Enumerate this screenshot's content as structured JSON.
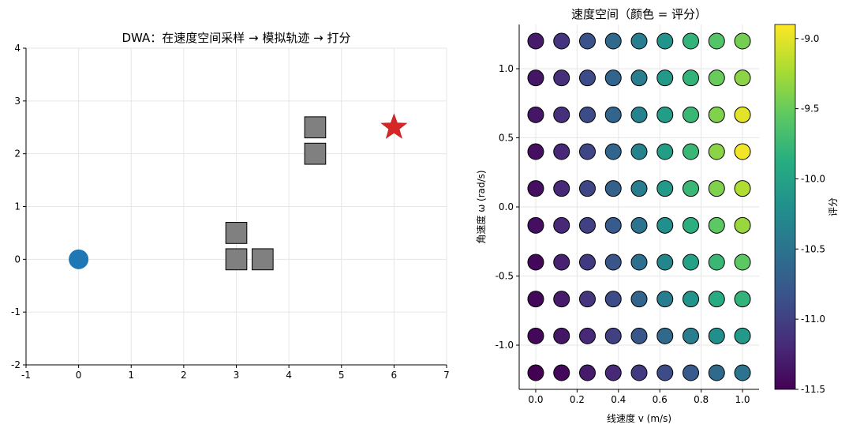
{
  "chart_data": [
    {
      "type": "scatter",
      "title": "DWA：在速度空间采样 → 模拟轨迹 → 打分",
      "xlabel": "",
      "ylabel": "",
      "xlim": [
        -1,
        7
      ],
      "ylim": [
        -2,
        4
      ],
      "xticks": [
        "-1",
        "0",
        "1",
        "2",
        "3",
        "4",
        "5",
        "6",
        "7"
      ],
      "yticks": [
        "-2",
        "-1",
        "0",
        "1",
        "2",
        "3",
        "4"
      ],
      "grid": true,
      "robot": {
        "x": 0,
        "y": 0,
        "color": "#1f77b4"
      },
      "goal": {
        "x": 6,
        "y": 2.5,
        "color": "#d62728"
      },
      "obstacles": [
        {
          "x": 3.0,
          "y": 0.5
        },
        {
          "x": 3.0,
          "y": 0.0
        },
        {
          "x": 3.5,
          "y": 0.0
        },
        {
          "x": 4.5,
          "y": 2.5
        },
        {
          "x": 4.5,
          "y": 2.0
        }
      ],
      "obstacle_color": "#808080"
    },
    {
      "type": "heatmap",
      "title": "速度空间（颜色 = 评分）",
      "xlabel": "线速度 v (m/s)",
      "ylabel": "角速度 ω (rad/s)",
      "xlim": [
        -0.08,
        1.08
      ],
      "ylim": [
        -1.32,
        1.32
      ],
      "xticks": [
        "0.0",
        "0.2",
        "0.4",
        "0.6",
        "0.8",
        "1.0"
      ],
      "yticks": [
        "-1.0",
        "-0.5",
        "0.0",
        "0.5",
        "1.0"
      ],
      "v": [
        0.0,
        0.125,
        0.25,
        0.375,
        0.5,
        0.625,
        0.75,
        0.875,
        1.0
      ],
      "omega": [
        1.2,
        0.9333,
        0.6667,
        0.4,
        0.1333,
        -0.1333,
        -0.4,
        -0.6667,
        -0.9333,
        -1.2
      ],
      "scores": [
        [
          -11.3,
          -11.1,
          -10.85,
          -10.6,
          -10.4,
          -10.15,
          -9.8,
          -9.6,
          -9.45
        ],
        [
          -11.35,
          -11.15,
          -10.9,
          -10.65,
          -10.4,
          -10.1,
          -9.8,
          -9.5,
          -9.35
        ],
        [
          -11.35,
          -11.15,
          -10.9,
          -10.65,
          -10.35,
          -10.05,
          -9.75,
          -9.4,
          -9.0
        ],
        [
          -11.4,
          -11.2,
          -10.95,
          -10.65,
          -10.35,
          -10.05,
          -9.75,
          -9.35,
          -8.95
        ],
        [
          -11.4,
          -11.2,
          -10.95,
          -10.7,
          -10.4,
          -10.1,
          -9.75,
          -9.4,
          -9.2
        ],
        [
          -11.4,
          -11.2,
          -11.0,
          -10.75,
          -10.5,
          -10.2,
          -9.85,
          -9.55,
          -9.3
        ],
        [
          -11.45,
          -11.25,
          -11.05,
          -10.8,
          -10.55,
          -10.3,
          -10.0,
          -9.75,
          -9.55
        ],
        [
          -11.45,
          -11.3,
          -11.1,
          -10.9,
          -10.65,
          -10.4,
          -10.15,
          -9.9,
          -9.8
        ],
        [
          -11.45,
          -11.35,
          -11.2,
          -11.0,
          -10.8,
          -10.6,
          -10.4,
          -10.2,
          -10.1
        ],
        [
          -11.5,
          -11.45,
          -11.3,
          -11.2,
          -11.05,
          -10.9,
          -10.75,
          -10.6,
          -10.5
        ]
      ],
      "colorbar": {
        "label": "评分",
        "range": [
          -11.5,
          -8.9
        ],
        "ticks": [
          -9.0,
          -9.5,
          -10.0,
          -10.5,
          -11.0,
          -11.5
        ],
        "tick_labels": [
          "-9.0",
          "-9.5",
          "-10.0",
          "-10.5",
          "-11.0",
          "-11.5"
        ],
        "colormap": "viridis"
      }
    }
  ]
}
